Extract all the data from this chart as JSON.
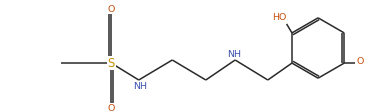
{
  "bg_color": "#ffffff",
  "bond_color": "#2a2a2a",
  "N_color": "#3a50b0",
  "O_color": "#c85010",
  "S_color": "#c89000",
  "figsize": [
    3.87,
    1.11
  ],
  "dpi": 100,
  "font_size": 6.8,
  "bond_lw": 1.1,
  "xlim": [
    -0.3,
    10.5
  ],
  "ylim": [
    -0.5,
    3.2
  ]
}
